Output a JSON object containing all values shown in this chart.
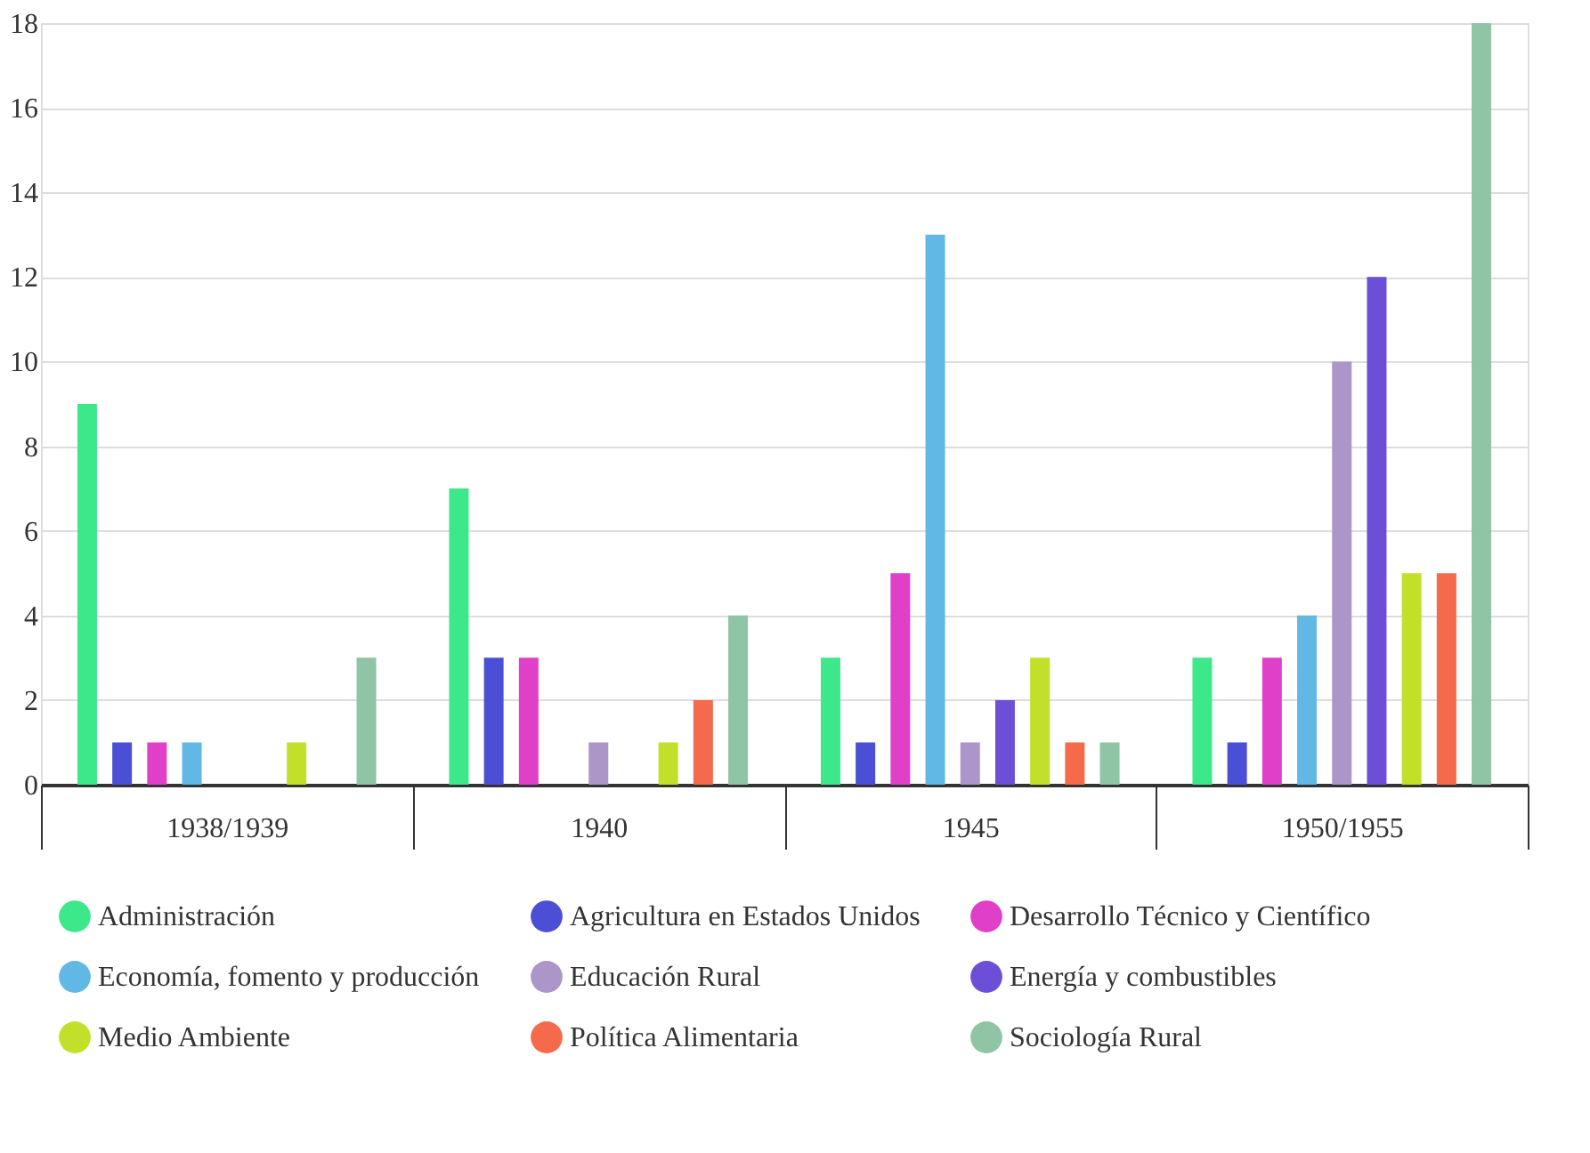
{
  "chart_data": {
    "type": "bar",
    "categories": [
      "1938/1939",
      "1940",
      "1945",
      "1950/1955"
    ],
    "series": [
      {
        "name": "Administración",
        "color": "#3de88a",
        "values": [
          9,
          7,
          3,
          3
        ]
      },
      {
        "name": "Agricultura en Estados Unidos",
        "color": "#4b4fd6",
        "values": [
          1,
          3,
          1,
          1
        ]
      },
      {
        "name": "Desarrollo Técnico y Científico",
        "color": "#e040c8",
        "values": [
          1,
          3,
          5,
          3
        ]
      },
      {
        "name": "Economía, fomento y producción",
        "color": "#62b8e5",
        "values": [
          1,
          0,
          13,
          4
        ]
      },
      {
        "name": "Educación Rural",
        "color": "#ab95c9",
        "values": [
          0,
          1,
          1,
          10
        ]
      },
      {
        "name": "Energía y combustibles",
        "color": "#6c4fd6",
        "values": [
          0,
          0,
          2,
          12
        ]
      },
      {
        "name": "Medio Ambiente",
        "color": "#c2e02a",
        "values": [
          1,
          1,
          3,
          5
        ]
      },
      {
        "name": "Política Alimentaria",
        "color": "#f46a4a",
        "values": [
          0,
          2,
          1,
          5
        ]
      },
      {
        "name": "Sociología Rural",
        "color": "#8fc4a4",
        "values": [
          3,
          4,
          1,
          18
        ]
      }
    ],
    "ylim": [
      0,
      18
    ],
    "yticks": [
      0,
      2,
      4,
      6,
      8,
      10,
      12,
      14,
      16,
      18
    ],
    "grid": "y",
    "legend": "bottom"
  }
}
